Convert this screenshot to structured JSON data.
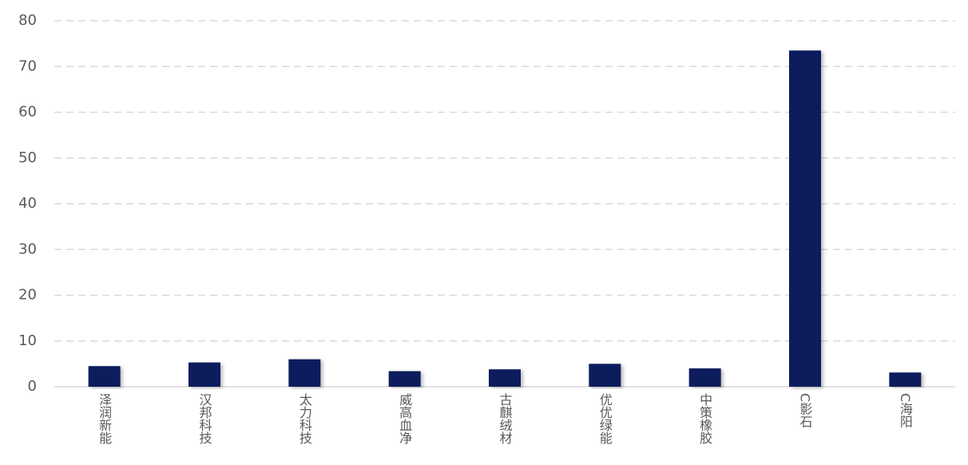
{
  "chart_data": {
    "type": "bar",
    "categories": [
      "泽润新能",
      "汉邦科技",
      "太力科技",
      "威高血净",
      "古麒绒材",
      "优优绿能",
      "中策橡胶",
      "C影石",
      "C海阳"
    ],
    "values": [
      4.5,
      5.3,
      6.0,
      3.4,
      3.8,
      5.0,
      4.0,
      73.5,
      3.1
    ],
    "color": "#0b1c5c",
    "ylim": [
      0,
      80
    ],
    "yticks": [
      0,
      10,
      20,
      30,
      40,
      50,
      60,
      70,
      80
    ],
    "grid": true
  }
}
